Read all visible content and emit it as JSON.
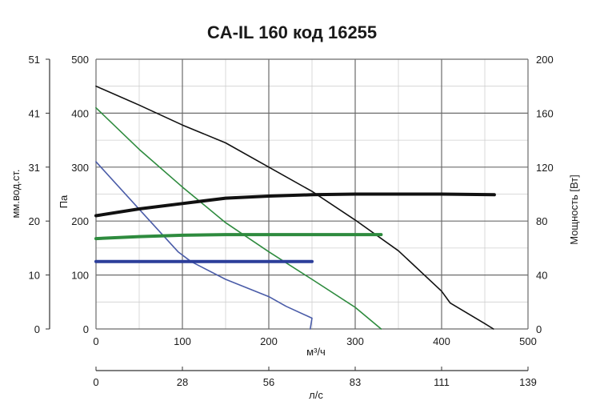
{
  "chart_data": {
    "type": "line",
    "title": "CA-IL 160 код 16255",
    "x_primary": {
      "label": "м³/ч",
      "range": [
        0,
        500
      ],
      "ticks": [
        0,
        100,
        200,
        300,
        400,
        500
      ]
    },
    "x_secondary": {
      "label": "л/с",
      "ticks": [
        "0",
        "28",
        "56",
        "83",
        "111",
        "139"
      ]
    },
    "y_pressure": {
      "label": "Па",
      "range": [
        0,
        500
      ],
      "ticks": [
        0,
        100,
        200,
        300,
        400,
        500
      ]
    },
    "y_left_outer": {
      "label": "мм.вод.ст.",
      "ticks": [
        "0",
        "10",
        "20",
        "31",
        "41",
        "51"
      ]
    },
    "y_power": {
      "label": "Мощность [Вт]",
      "range": [
        0,
        200
      ],
      "ticks": [
        0,
        40,
        80,
        120,
        160,
        200
      ]
    },
    "grid": true,
    "series": [
      {
        "axis": "pressure",
        "color": "#111111",
        "width": 1.6,
        "points": [
          [
            0,
            450
          ],
          [
            50,
            415
          ],
          [
            100,
            378
          ],
          [
            150,
            345
          ],
          [
            200,
            300
          ],
          [
            250,
            255
          ],
          [
            300,
            202
          ],
          [
            350,
            145
          ],
          [
            400,
            70
          ],
          [
            410,
            48
          ],
          [
            450,
            10
          ],
          [
            460,
            0
          ]
        ]
      },
      {
        "axis": "pressure",
        "color": "#2e8b3e",
        "width": 1.6,
        "points": [
          [
            0,
            410
          ],
          [
            50,
            333
          ],
          [
            100,
            263
          ],
          [
            150,
            197
          ],
          [
            200,
            143
          ],
          [
            250,
            92
          ],
          [
            300,
            40
          ],
          [
            330,
            0
          ]
        ]
      },
      {
        "axis": "pressure",
        "color": "#4a5ca8",
        "width": 1.6,
        "points": [
          [
            0,
            310
          ],
          [
            50,
            222
          ],
          [
            95,
            143
          ],
          [
            110,
            125
          ],
          [
            150,
            92
          ],
          [
            200,
            60
          ],
          [
            220,
            42
          ],
          [
            250,
            20
          ],
          [
            248,
            0
          ]
        ]
      },
      {
        "axis": "power",
        "color": "#111111",
        "width": 4,
        "points": [
          [
            0,
            84
          ],
          [
            50,
            89
          ],
          [
            100,
            93
          ],
          [
            150,
            97
          ],
          [
            200,
            98.5
          ],
          [
            250,
            99.5
          ],
          [
            300,
            100
          ],
          [
            350,
            100
          ],
          [
            400,
            100
          ],
          [
            461,
            99.5
          ]
        ]
      },
      {
        "axis": "power",
        "color": "#2e8b3e",
        "width": 4,
        "points": [
          [
            0,
            67
          ],
          [
            50,
            68.5
          ],
          [
            100,
            69.5
          ],
          [
            150,
            70
          ],
          [
            200,
            70
          ],
          [
            250,
            70
          ],
          [
            300,
            70
          ],
          [
            330,
            70
          ]
        ]
      },
      {
        "axis": "power",
        "color": "#2c3e9a",
        "width": 4,
        "points": [
          [
            0,
            50
          ],
          [
            100,
            50
          ],
          [
            200,
            50
          ],
          [
            250,
            50
          ]
        ]
      }
    ]
  }
}
